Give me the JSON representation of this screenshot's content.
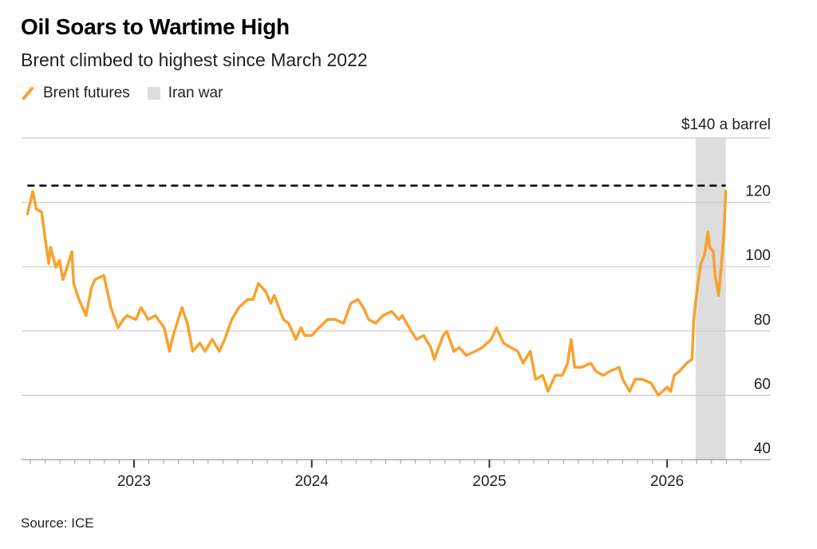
{
  "colors": {
    "series": "#f9a12e",
    "shade": "#dddddd",
    "grid": "#cccccc",
    "reference": "#000000"
  },
  "chart_data": {
    "type": "line",
    "title": "Oil Soars to Wartime High",
    "subtitle": "Brent climbed to highest since March 2022",
    "source": "Source: ICE",
    "legend": [
      {
        "label": "Brent futures",
        "kind": "line"
      },
      {
        "label": "Iran war",
        "kind": "shaded-region"
      }
    ],
    "legend_placement": "top-left",
    "y_axis": {
      "position": "right",
      "ylim": [
        40,
        140
      ],
      "ticks": [
        40,
        60,
        80,
        100,
        120,
        140
      ],
      "top_label": "$140 a barrel",
      "grid": true
    },
    "x_axis": {
      "ticks": [
        "2023",
        "2024",
        "2025",
        "2026"
      ],
      "xlim": [
        2022.37,
        2026.58
      ],
      "minor_ticks": "monthly"
    },
    "reference_line": {
      "value": 125.2,
      "style": "dashed"
    },
    "shaded_region": {
      "label": "Iran war",
      "from": 2026.16,
      "to": 2026.33
    },
    "series": [
      {
        "name": "Brent futures",
        "points": [
          [
            2022.4,
            116.4
          ],
          [
            2022.43,
            123.4
          ],
          [
            2022.45,
            117.9
          ],
          [
            2022.48,
            117.0
          ],
          [
            2022.5,
            108.4
          ],
          [
            2022.52,
            101.0
          ],
          [
            2022.53,
            106.0
          ],
          [
            2022.56,
            99.8
          ],
          [
            2022.58,
            102.0
          ],
          [
            2022.6,
            96.0
          ],
          [
            2022.63,
            101.0
          ],
          [
            2022.65,
            104.7
          ],
          [
            2022.66,
            94.8
          ],
          [
            2022.69,
            89.8
          ],
          [
            2022.73,
            84.8
          ],
          [
            2022.76,
            93.5
          ],
          [
            2022.78,
            96.0
          ],
          [
            2022.83,
            97.3
          ],
          [
            2022.85,
            92.3
          ],
          [
            2022.87,
            87.3
          ],
          [
            2022.91,
            81.0
          ],
          [
            2022.94,
            83.6
          ],
          [
            2022.96,
            84.8
          ],
          [
            2023.01,
            83.6
          ],
          [
            2023.04,
            87.3
          ],
          [
            2023.08,
            83.6
          ],
          [
            2023.12,
            84.8
          ],
          [
            2023.17,
            81.0
          ],
          [
            2023.2,
            73.7
          ],
          [
            2023.22,
            78.6
          ],
          [
            2023.27,
            87.3
          ],
          [
            2023.3,
            82.4
          ],
          [
            2023.33,
            73.7
          ],
          [
            2023.37,
            76.2
          ],
          [
            2023.4,
            73.7
          ],
          [
            2023.44,
            77.4
          ],
          [
            2023.48,
            73.7
          ],
          [
            2023.51,
            77.4
          ],
          [
            2023.55,
            83.6
          ],
          [
            2023.59,
            87.3
          ],
          [
            2023.64,
            89.8
          ],
          [
            2023.67,
            89.8
          ],
          [
            2023.7,
            94.8
          ],
          [
            2023.74,
            92.3
          ],
          [
            2023.77,
            88.6
          ],
          [
            2023.79,
            91.1
          ],
          [
            2023.84,
            83.6
          ],
          [
            2023.87,
            82.4
          ],
          [
            2023.91,
            77.4
          ],
          [
            2023.94,
            81.0
          ],
          [
            2023.96,
            78.6
          ],
          [
            2024.0,
            78.6
          ],
          [
            2024.04,
            81.0
          ],
          [
            2024.09,
            83.6
          ],
          [
            2024.13,
            83.6
          ],
          [
            2024.18,
            82.4
          ],
          [
            2024.22,
            88.6
          ],
          [
            2024.26,
            89.8
          ],
          [
            2024.29,
            87.3
          ],
          [
            2024.32,
            83.6
          ],
          [
            2024.36,
            82.4
          ],
          [
            2024.4,
            84.8
          ],
          [
            2024.45,
            86.1
          ],
          [
            2024.49,
            83.6
          ],
          [
            2024.51,
            84.8
          ],
          [
            2024.56,
            79.9
          ],
          [
            2024.59,
            77.4
          ],
          [
            2024.63,
            78.6
          ],
          [
            2024.67,
            74.9
          ],
          [
            2024.69,
            71.2
          ],
          [
            2024.74,
            78.6
          ],
          [
            2024.76,
            79.9
          ],
          [
            2024.8,
            73.7
          ],
          [
            2024.83,
            74.9
          ],
          [
            2024.87,
            72.4
          ],
          [
            2024.92,
            73.7
          ],
          [
            2024.96,
            74.9
          ],
          [
            2025.01,
            77.4
          ],
          [
            2025.04,
            81.0
          ],
          [
            2025.08,
            76.2
          ],
          [
            2025.12,
            74.9
          ],
          [
            2025.16,
            73.7
          ],
          [
            2025.19,
            70.0
          ],
          [
            2025.23,
            73.7
          ],
          [
            2025.26,
            65.0
          ],
          [
            2025.3,
            66.2
          ],
          [
            2025.33,
            61.2
          ],
          [
            2025.37,
            66.2
          ],
          [
            2025.41,
            66.2
          ],
          [
            2025.44,
            70.0
          ],
          [
            2025.46,
            77.4
          ],
          [
            2025.48,
            68.7
          ],
          [
            2025.52,
            68.7
          ],
          [
            2025.57,
            70.0
          ],
          [
            2025.6,
            67.5
          ],
          [
            2025.64,
            66.2
          ],
          [
            2025.68,
            67.5
          ],
          [
            2025.73,
            68.7
          ],
          [
            2025.75,
            65.0
          ],
          [
            2025.79,
            61.2
          ],
          [
            2025.82,
            65.0
          ],
          [
            2025.86,
            65.0
          ],
          [
            2025.91,
            63.8
          ],
          [
            2025.95,
            60.0
          ],
          [
            2026.0,
            62.5
          ],
          [
            2026.02,
            61.2
          ],
          [
            2026.04,
            66.2
          ],
          [
            2026.07,
            67.5
          ],
          [
            2026.11,
            70.0
          ],
          [
            2026.14,
            71.2
          ],
          [
            2026.15,
            83.6
          ],
          [
            2026.17,
            93.5
          ],
          [
            2026.19,
            101.0
          ],
          [
            2026.21,
            103.5
          ],
          [
            2026.23,
            110.9
          ],
          [
            2026.24,
            106.0
          ],
          [
            2026.26,
            104.7
          ],
          [
            2026.27,
            97.3
          ],
          [
            2026.29,
            91.1
          ],
          [
            2026.31,
            103.5
          ],
          [
            2026.32,
            110.9
          ],
          [
            2026.33,
            123.4
          ]
        ]
      }
    ]
  }
}
